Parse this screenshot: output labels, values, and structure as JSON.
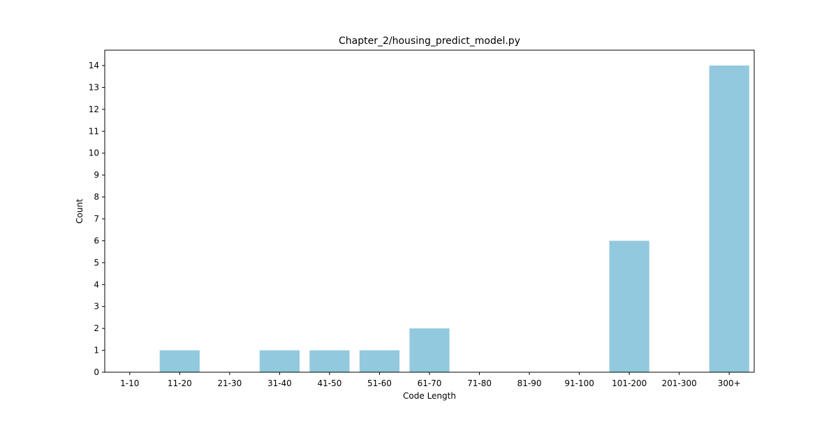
{
  "chart_data": {
    "type": "bar",
    "title": "Chapter_2/housing_predict_model.py",
    "xlabel": "Code Length",
    "ylabel": "Count",
    "categories": [
      "1-10",
      "11-20",
      "21-30",
      "31-40",
      "41-50",
      "51-60",
      "61-70",
      "71-80",
      "81-90",
      "91-100",
      "101-200",
      "201-300",
      "300+"
    ],
    "values": [
      0,
      1,
      0,
      1,
      1,
      1,
      2,
      0,
      0,
      0,
      6,
      0,
      14
    ],
    "yticks": [
      0,
      1,
      2,
      3,
      4,
      5,
      6,
      7,
      8,
      9,
      10,
      11,
      12,
      13,
      14
    ],
    "ylim": [
      0,
      14.7
    ],
    "bar_color": "#92c9de",
    "grid": false,
    "legend": "none"
  }
}
